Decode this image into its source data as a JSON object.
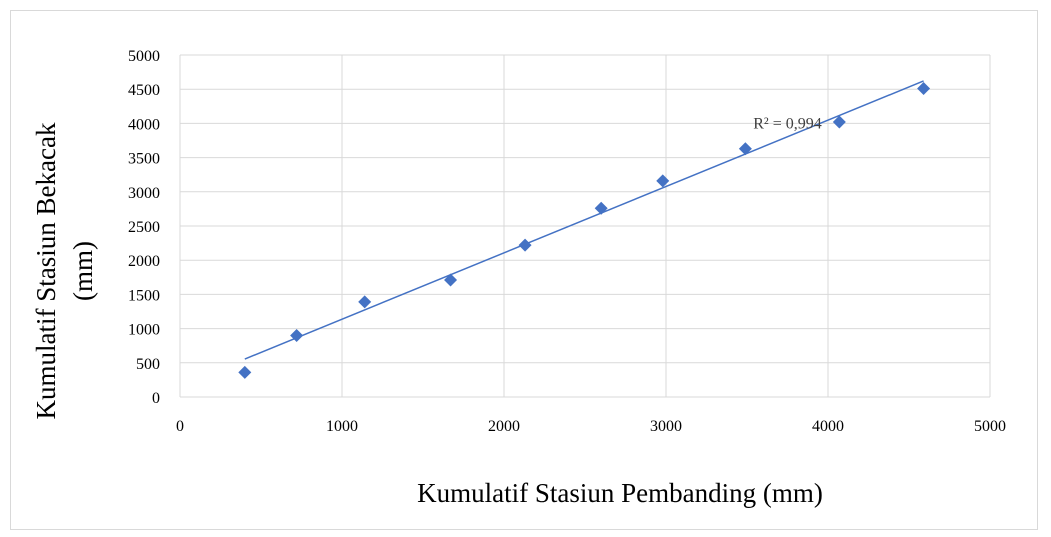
{
  "chart_data": {
    "type": "scatter",
    "x": [
      400,
      720,
      1140,
      1670,
      2130,
      2600,
      2980,
      3490,
      4070,
      4590
    ],
    "y": [
      360,
      900,
      1390,
      1710,
      2220,
      2760,
      3160,
      3630,
      4020,
      4510
    ],
    "trendline": {
      "type": "linear",
      "x_start": 400,
      "y_start": 555,
      "x_end": 4590,
      "y_end": 4620
    },
    "annotation": "R² = 0,994",
    "xlabel": "Kumulatif  Stasiun Pembanding (mm)",
    "ylabel_lines": [
      "Kumulatif Stasiun Bekacak",
      "(mm)"
    ],
    "xlim": [
      0,
      5000
    ],
    "ylim": [
      0,
      5000
    ],
    "x_ticks": [
      0,
      1000,
      2000,
      3000,
      4000,
      5000
    ],
    "y_ticks": [
      0,
      500,
      1000,
      1500,
      2000,
      2500,
      3000,
      3500,
      4000,
      4500,
      5000
    ],
    "grid": true,
    "colors": {
      "marker": "#4472c4",
      "line": "#4472c4",
      "grid": "#d9d9d9"
    }
  }
}
